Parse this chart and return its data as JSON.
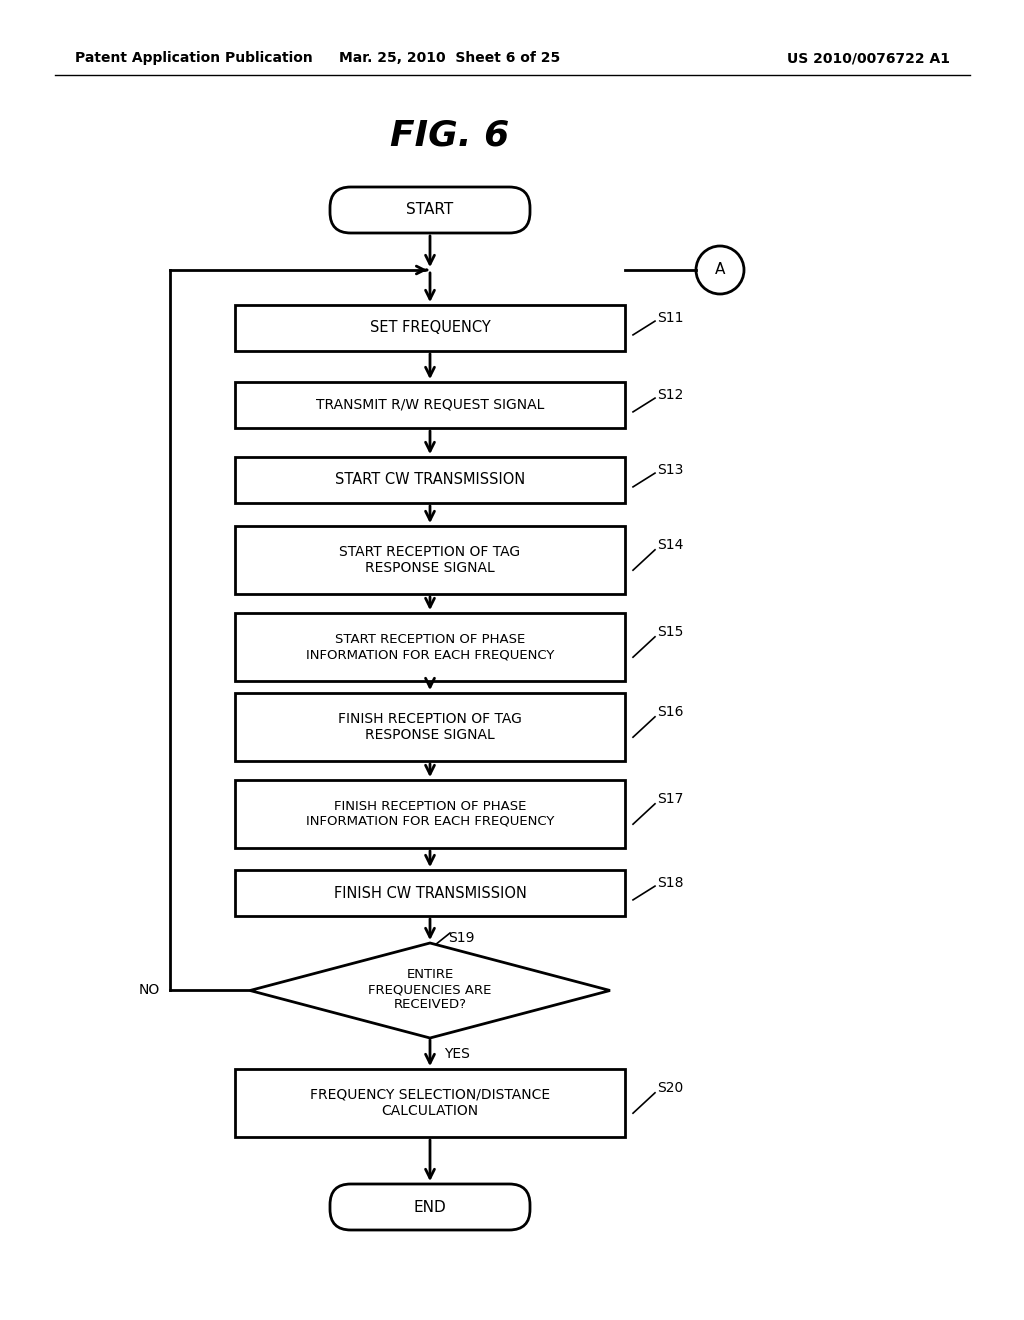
{
  "header_left": "Patent Application Publication",
  "header_mid": "Mar. 25, 2010  Sheet 6 of 25",
  "header_right": "US 2010/0076722 A1",
  "fig_title": "FIG. 6",
  "bg_color": "#ffffff",
  "steps": [
    {
      "id": "START",
      "type": "rounded",
      "label": "START",
      "step": null
    },
    {
      "id": "S11",
      "type": "rect",
      "label": "SET FREQUENCY",
      "step": "S11"
    },
    {
      "id": "S12",
      "type": "rect",
      "label": "TRANSMIT R/W REQUEST SIGNAL",
      "step": "S12"
    },
    {
      "id": "S13",
      "type": "rect",
      "label": "START CW TRANSMISSION",
      "step": "S13"
    },
    {
      "id": "S14",
      "type": "rect",
      "label": "START RECEPTION OF TAG\nRESPONSE SIGNAL",
      "step": "S14"
    },
    {
      "id": "S15",
      "type": "rect",
      "label": "START RECEPTION OF PHASE\nINFORMATION FOR EACH FREQUENCY",
      "step": "S15"
    },
    {
      "id": "S16",
      "type": "rect",
      "label": "FINISH RECEPTION OF TAG\nRESPONSE SIGNAL",
      "step": "S16"
    },
    {
      "id": "S17",
      "type": "rect",
      "label": "FINISH RECEPTION OF PHASE\nINFORMATION FOR EACH FREQUENCY",
      "step": "S17"
    },
    {
      "id": "S18",
      "type": "rect",
      "label": "FINISH CW TRANSMISSION",
      "step": "S18"
    },
    {
      "id": "S19",
      "type": "diamond",
      "label": "ENTIRE\nFREQUENCIES ARE\nRECEIVED?",
      "step": "S19"
    },
    {
      "id": "S20",
      "type": "rect",
      "label": "FREQUENCY SELECTION/DISTANCE\nCALCULATION",
      "step": "S20"
    },
    {
      "id": "END",
      "type": "rounded",
      "label": "END",
      "step": null
    }
  ]
}
